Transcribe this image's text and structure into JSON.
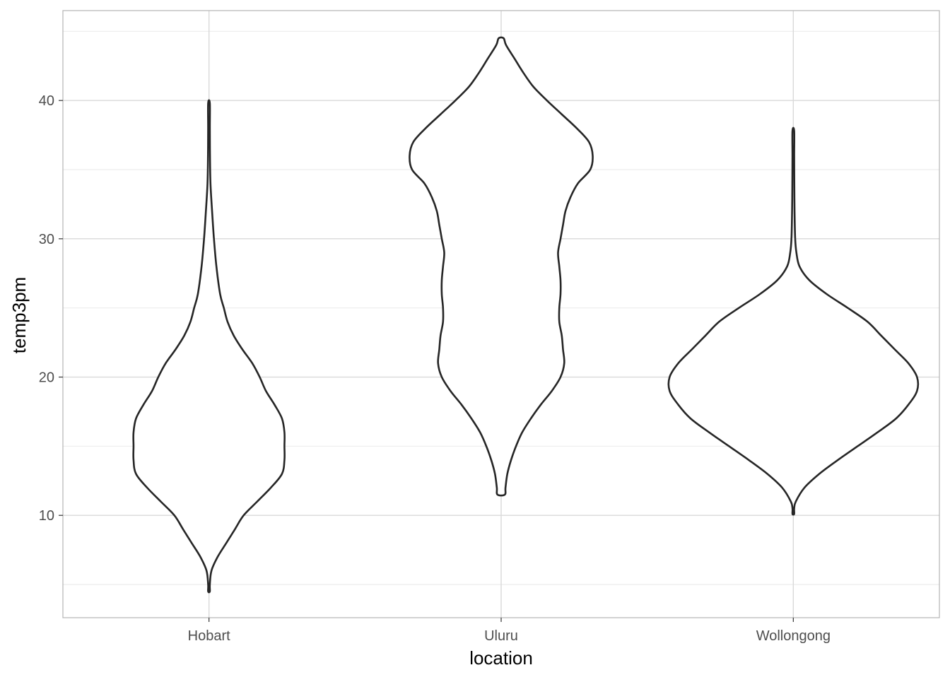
{
  "chart_data": {
    "type": "violin",
    "xlabel": "location",
    "ylabel": "temp3pm",
    "categories": [
      "Hobart",
      "Uluru",
      "Wollongong"
    ],
    "ylim": [
      2.6,
      46.5
    ],
    "yticks": [
      10,
      20,
      30,
      40
    ],
    "grid": true,
    "colors": {
      "outline": "#262626",
      "grid_major": "#d9d9d9",
      "grid_minor": "#ebebeb",
      "panel_border": "#b3b3b3"
    },
    "series": [
      {
        "category": "Hobart",
        "min": 4.5,
        "max": 39.8,
        "profile": [
          [
            4.5,
            0.0
          ],
          [
            5.0,
            0.005
          ],
          [
            6.0,
            0.02
          ],
          [
            7.0,
            0.07
          ],
          [
            8.0,
            0.14
          ],
          [
            9.0,
            0.21
          ],
          [
            10.0,
            0.28
          ],
          [
            11.0,
            0.39
          ],
          [
            12.0,
            0.5
          ],
          [
            13.0,
            0.59
          ],
          [
            14.0,
            0.61
          ],
          [
            15.0,
            0.61
          ],
          [
            16.0,
            0.61
          ],
          [
            17.0,
            0.59
          ],
          [
            18.0,
            0.53
          ],
          [
            19.0,
            0.46
          ],
          [
            20.0,
            0.41
          ],
          [
            21.0,
            0.35
          ],
          [
            22.0,
            0.27
          ],
          [
            23.0,
            0.2
          ],
          [
            24.0,
            0.15
          ],
          [
            25.0,
            0.12
          ],
          [
            26.0,
            0.09
          ],
          [
            28.0,
            0.06
          ],
          [
            30.0,
            0.04
          ],
          [
            32.0,
            0.025
          ],
          [
            34.0,
            0.012
          ],
          [
            36.0,
            0.008
          ],
          [
            38.0,
            0.006
          ],
          [
            39.8,
            0.005
          ]
        ]
      },
      {
        "category": "Uluru",
        "min": 11.5,
        "max": 44.5,
        "profile": [
          [
            11.5,
            0.03
          ],
          [
            12.0,
            0.035
          ],
          [
            13.0,
            0.05
          ],
          [
            14.0,
            0.08
          ],
          [
            15.0,
            0.12
          ],
          [
            16.0,
            0.17
          ],
          [
            17.0,
            0.24
          ],
          [
            18.0,
            0.32
          ],
          [
            19.0,
            0.41
          ],
          [
            20.0,
            0.48
          ],
          [
            21.0,
            0.51
          ],
          [
            22.0,
            0.5
          ],
          [
            23.0,
            0.49
          ],
          [
            24.0,
            0.47
          ],
          [
            25.0,
            0.47
          ],
          [
            26.0,
            0.48
          ],
          [
            27.0,
            0.48
          ],
          [
            28.0,
            0.47
          ],
          [
            29.0,
            0.46
          ],
          [
            30.0,
            0.48
          ],
          [
            31.0,
            0.5
          ],
          [
            32.0,
            0.52
          ],
          [
            33.0,
            0.56
          ],
          [
            34.0,
            0.62
          ],
          [
            35.0,
            0.72
          ],
          [
            36.0,
            0.74
          ],
          [
            37.0,
            0.71
          ],
          [
            38.0,
            0.61
          ],
          [
            39.0,
            0.49
          ],
          [
            40.0,
            0.37
          ],
          [
            41.0,
            0.26
          ],
          [
            42.0,
            0.18
          ],
          [
            43.0,
            0.11
          ],
          [
            44.0,
            0.04
          ],
          [
            44.5,
            0.02
          ]
        ]
      },
      {
        "category": "Wollongong",
        "min": 10.1,
        "max": 37.8,
        "profile": [
          [
            10.1,
            0.0
          ],
          [
            10.5,
            0.003
          ],
          [
            11.0,
            0.02
          ],
          [
            12.0,
            0.09
          ],
          [
            13.0,
            0.21
          ],
          [
            14.0,
            0.36
          ],
          [
            15.0,
            0.52
          ],
          [
            16.0,
            0.68
          ],
          [
            17.0,
            0.83
          ],
          [
            18.0,
            0.93
          ],
          [
            19.0,
            1.0
          ],
          [
            20.0,
            1.0
          ],
          [
            21.0,
            0.93
          ],
          [
            22.0,
            0.82
          ],
          [
            23.0,
            0.71
          ],
          [
            24.0,
            0.6
          ],
          [
            25.0,
            0.44
          ],
          [
            26.0,
            0.27
          ],
          [
            27.0,
            0.13
          ],
          [
            28.0,
            0.05
          ],
          [
            29.0,
            0.025
          ],
          [
            30.0,
            0.015
          ],
          [
            32.0,
            0.01
          ],
          [
            34.0,
            0.008
          ],
          [
            36.0,
            0.007
          ],
          [
            37.8,
            0.007
          ]
        ]
      }
    ]
  }
}
